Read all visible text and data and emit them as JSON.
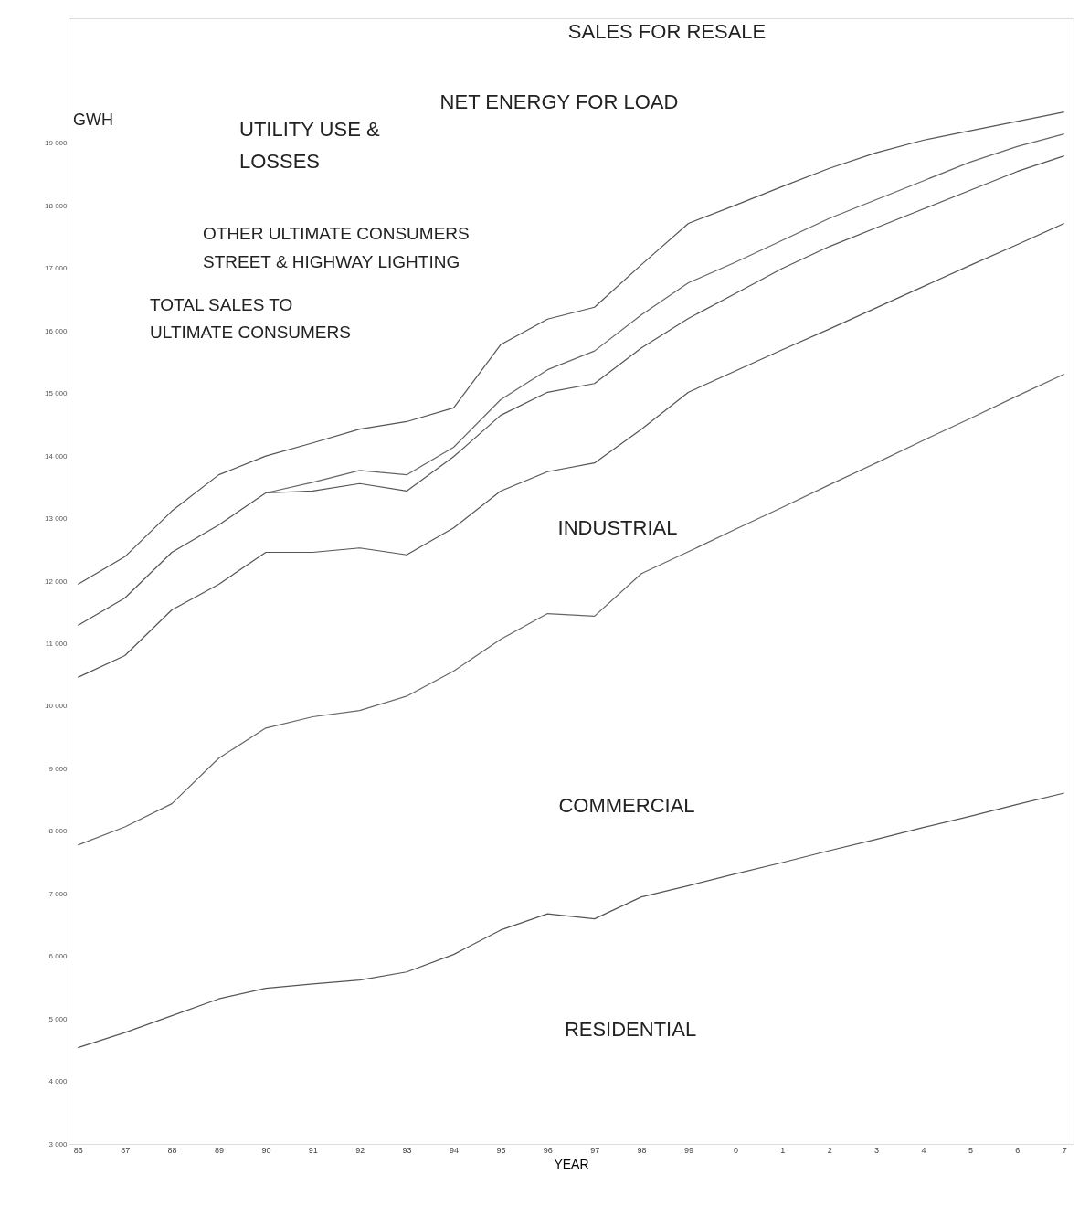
{
  "chart_data": {
    "type": "line",
    "xlabel": "YEAR",
    "ylabel": "GWH",
    "categories": [
      "86",
      "87",
      "88",
      "89",
      "90",
      "91",
      "92",
      "93",
      "94",
      "95",
      "96",
      "97",
      "98",
      "99",
      "0",
      "1",
      "2",
      "3",
      "4",
      "5",
      "6",
      "7"
    ],
    "ylim": [
      3000,
      21000
    ],
    "yticks": [
      {
        "value": 3000,
        "label": "3 000"
      },
      {
        "value": 4000,
        "label": "4 000"
      },
      {
        "value": 5000,
        "label": "5 000"
      },
      {
        "value": 6000,
        "label": "6 000"
      },
      {
        "value": 7000,
        "label": "7 000"
      },
      {
        "value": 8000,
        "label": "8 000"
      },
      {
        "value": 9000,
        "label": "9 000"
      },
      {
        "value": 10000,
        "label": "10 000"
      },
      {
        "value": 11000,
        "label": "11 000"
      },
      {
        "value": 12000,
        "label": "12 000"
      },
      {
        "value": 13000,
        "label": "13 000"
      },
      {
        "value": 14000,
        "label": "14 000"
      },
      {
        "value": 15000,
        "label": "15 000"
      },
      {
        "value": 16000,
        "label": "16 000"
      },
      {
        "value": 17000,
        "label": "17 000"
      },
      {
        "value": 18000,
        "label": "18 000"
      },
      {
        "value": 19000,
        "label": "19 000"
      }
    ],
    "series": [
      {
        "color": "#555555",
        "values": [
          4540,
          4780,
          5050,
          5320,
          5490,
          5560,
          5620,
          5750,
          6030,
          6420,
          6680,
          6600,
          6950,
          7130,
          7320,
          7500,
          7690,
          7870,
          8060,
          8240,
          8430,
          8610
        ]
      },
      {
        "color": "#666666",
        "values": [
          7780,
          8070,
          8440,
          9170,
          9650,
          9830,
          9930,
          10160,
          10560,
          11070,
          11480,
          11440,
          12120,
          12470,
          12830,
          13180,
          13540,
          13890,
          14250,
          14600,
          14960,
          15310
        ]
      },
      {
        "color": "#555555",
        "values": [
          10460,
          10810,
          11540,
          11950,
          12460,
          12460,
          12530,
          12420,
          12850,
          13440,
          13750,
          13890,
          14430,
          15020,
          15360,
          15700,
          16030,
          16370,
          16710,
          17050,
          17380,
          17720
        ]
      },
      {
        "color": "#555555",
        "values": [
          11290,
          11730,
          12460,
          12900,
          13410,
          13440,
          13560,
          13440,
          13990,
          14650,
          15020,
          15160,
          15730,
          16200,
          16600,
          17000,
          17350,
          17650,
          17950,
          18250,
          18550,
          18800
        ]
      },
      {
        "color": "#666666",
        "values": [
          null,
          null,
          null,
          null,
          13410,
          13580,
          13770,
          13700,
          14140,
          14900,
          15380,
          15680,
          16260,
          16770,
          17100,
          17450,
          17800,
          18100,
          18400,
          18700,
          18950,
          19150
        ]
      },
      {
        "color": "#555555",
        "values": [
          11950,
          12390,
          13120,
          13700,
          14000,
          14210,
          14430,
          14550,
          14770,
          15780,
          16190,
          16380,
          17060,
          17720,
          18010,
          18310,
          18600,
          18850,
          19050,
          19200,
          19350,
          19500
        ]
      }
    ],
    "annotations": [
      "SALES FOR RESALE",
      "NET ENERGY FOR LOAD",
      "UTILITY USE &\nLOSSES",
      "OTHER ULTIMATE CONSUMERS",
      "STREET & HIGHWAY LIGHTING",
      "TOTAL SALES TO\nULTIMATE CONSUMERS",
      "INDUSTRIAL",
      "COMMERCIAL",
      "RESIDENTIAL"
    ]
  }
}
